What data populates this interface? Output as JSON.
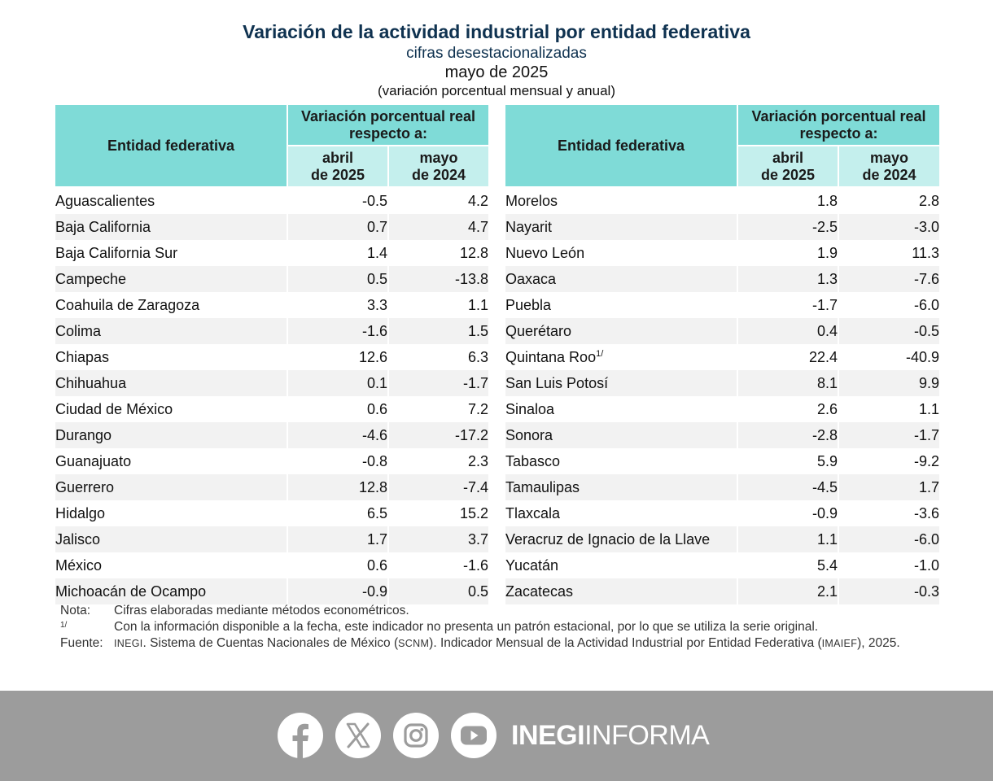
{
  "header": {
    "title": "Variación de la actividad industrial por entidad federativa",
    "subtitle": "cifras desestacionalizadas",
    "period": "mayo de 2025",
    "note": "(variación porcentual mensual y anual)"
  },
  "table": {
    "col_entity": "Entidad federativa",
    "col_group": "Variación porcentual real respecto a:",
    "col_sub1_line1": "abril",
    "col_sub1_line2": "de 2025",
    "col_sub2_line1": "mayo",
    "col_sub2_line2": "de 2024",
    "left_rows": [
      {
        "name": "Aguascalientes",
        "v1": "-0.5",
        "v2": "4.2"
      },
      {
        "name": "Baja California",
        "v1": "0.7",
        "v2": "4.7"
      },
      {
        "name": "Baja California Sur",
        "v1": "1.4",
        "v2": "12.8"
      },
      {
        "name": "Campeche",
        "v1": "0.5",
        "v2": "-13.8"
      },
      {
        "name": "Coahuila de Zaragoza",
        "v1": "3.3",
        "v2": "1.1"
      },
      {
        "name": "Colima",
        "v1": "-1.6",
        "v2": "1.5"
      },
      {
        "name": "Chiapas",
        "v1": "12.6",
        "v2": "6.3"
      },
      {
        "name": "Chihuahua",
        "v1": "0.1",
        "v2": "-1.7"
      },
      {
        "name": "Ciudad de México",
        "v1": "0.6",
        "v2": "7.2"
      },
      {
        "name": "Durango",
        "v1": "-4.6",
        "v2": "-17.2"
      },
      {
        "name": "Guanajuato",
        "v1": "-0.8",
        "v2": "2.3"
      },
      {
        "name": "Guerrero",
        "v1": "12.8",
        "v2": "-7.4"
      },
      {
        "name": "Hidalgo",
        "v1": "6.5",
        "v2": "15.2"
      },
      {
        "name": "Jalisco",
        "v1": "1.7",
        "v2": "3.7"
      },
      {
        "name": "México",
        "v1": "0.6",
        "v2": "-1.6"
      },
      {
        "name": "Michoacán de Ocampo",
        "v1": "-0.9",
        "v2": "0.5"
      }
    ],
    "right_rows": [
      {
        "name": "Morelos",
        "v1": "1.8",
        "v2": "2.8"
      },
      {
        "name": "Nayarit",
        "v1": "-2.5",
        "v2": "-3.0"
      },
      {
        "name": "Nuevo León",
        "v1": "1.9",
        "v2": "11.3"
      },
      {
        "name": "Oaxaca",
        "v1": "1.3",
        "v2": "-7.6"
      },
      {
        "name": "Puebla",
        "v1": "-1.7",
        "v2": "-6.0"
      },
      {
        "name": "Querétaro",
        "v1": "0.4",
        "v2": "-0.5"
      },
      {
        "name": "Quintana Roo",
        "fn": "1/",
        "v1": "22.4",
        "v2": "-40.9"
      },
      {
        "name": "San Luis Potosí",
        "v1": "8.1",
        "v2": "9.9"
      },
      {
        "name": "Sinaloa",
        "v1": "2.6",
        "v2": "1.1"
      },
      {
        "name": "Sonora",
        "v1": "-2.8",
        "v2": "-1.7"
      },
      {
        "name": "Tabasco",
        "v1": "5.9",
        "v2": "-9.2"
      },
      {
        "name": "Tamaulipas",
        "v1": "-4.5",
        "v2": "1.7"
      },
      {
        "name": "Tlaxcala",
        "v1": "-0.9",
        "v2": "-3.6"
      },
      {
        "name": "Veracruz de Ignacio de la Llave",
        "v1": "1.1",
        "v2": "-6.0"
      },
      {
        "name": "Yucatán",
        "v1": "5.4",
        "v2": "-1.0"
      },
      {
        "name": "Zacatecas",
        "v1": "2.1",
        "v2": "-0.3"
      }
    ]
  },
  "footnotes": {
    "nota_label": "Nota:",
    "nota_text": "Cifras elaboradas mediante métodos econométricos.",
    "fn1_label": "1/",
    "fn1_text": "Con la información disponible a la fecha, este indicador no presenta un patrón estacional, por lo que se utiliza la serie original.",
    "fuente_label": "Fuente:",
    "fuente_inegi": "INEGI",
    "fuente_part1": ". Sistema de Cuentas Nacionales de México (",
    "fuente_scnm": "SCNM",
    "fuente_part2": "). Indicador Mensual de la Actividad Industrial por Entidad Federativa (",
    "fuente_imaief": "IMAIEF",
    "fuente_part3": "), 2025."
  },
  "footer": {
    "brand_bold": "INEGI",
    "brand_light": "INFORMA",
    "icons": [
      "facebook-icon",
      "x-icon",
      "instagram-icon",
      "youtube-icon"
    ],
    "bar_color": "#9c9c9c"
  }
}
